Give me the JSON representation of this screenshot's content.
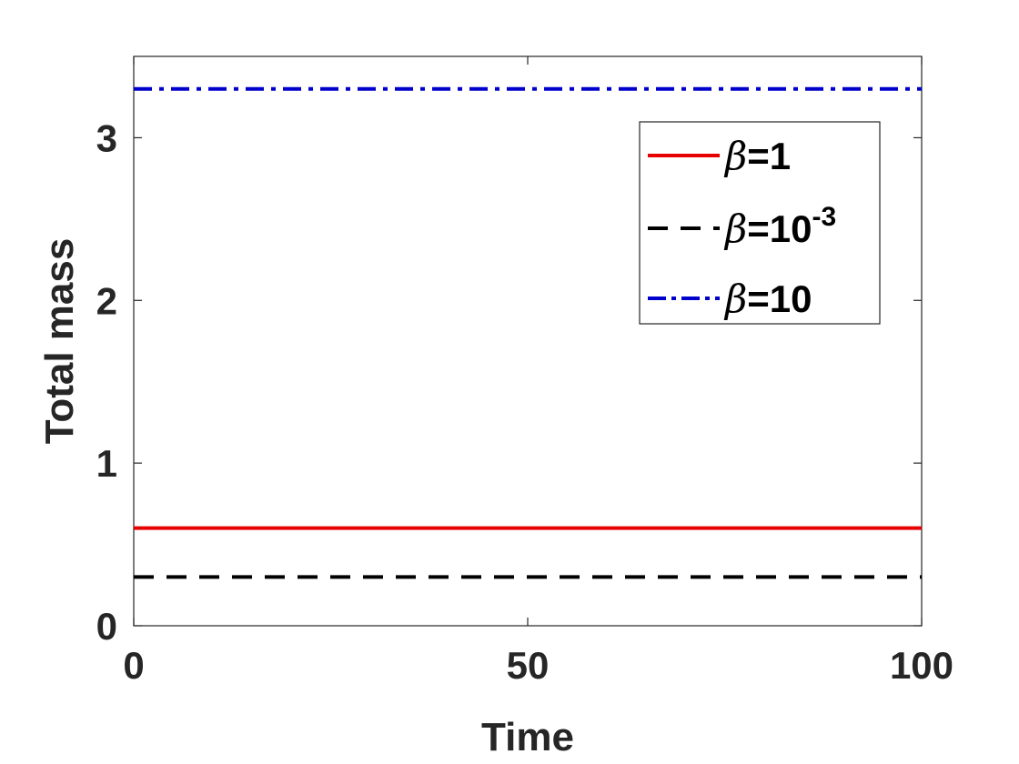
{
  "chart_data": {
    "type": "line",
    "title": "",
    "xlabel": "Time",
    "ylabel": "Total mass",
    "xlim": [
      0,
      100
    ],
    "ylim": [
      0,
      3.5
    ],
    "xticks": [
      0,
      50,
      100
    ],
    "yticks": [
      0,
      1,
      2,
      3
    ],
    "grid": false,
    "legend_position": "top-right",
    "series": [
      {
        "name": "β=1",
        "legend_symbol": "β",
        "legend_text": "=1",
        "legend_sup": "",
        "color": "#e60000",
        "line_style": "solid",
        "x": [
          0,
          100
        ],
        "y": [
          0.6,
          0.6
        ]
      },
      {
        "name": "β=10-3",
        "legend_symbol": "β",
        "legend_text": "=10",
        "legend_sup": "-3",
        "color": "#000000",
        "line_style": "dashed",
        "x": [
          0,
          100
        ],
        "y": [
          0.3,
          0.3
        ]
      },
      {
        "name": "β=10",
        "legend_symbol": "β",
        "legend_text": "=10",
        "legend_sup": "",
        "color": "#0000cc",
        "line_style": "dash-dot",
        "x": [
          0,
          100
        ],
        "y": [
          3.3,
          3.3
        ]
      }
    ]
  }
}
